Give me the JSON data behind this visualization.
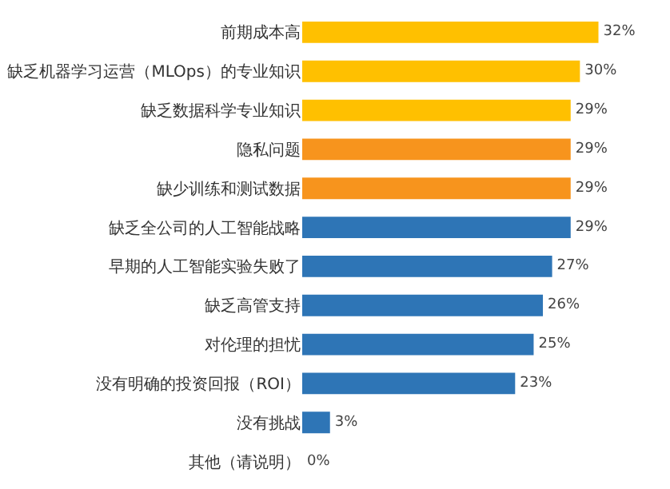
{
  "chart_data": {
    "type": "bar",
    "orientation": "horizontal",
    "tick_labels": "y",
    "legend": false,
    "categories": [
      "前期成本高",
      "缺乏机器学习运营（MLOps）的专业知识",
      "缺乏数据科学专业知识",
      "隐私问题",
      "缺少训练和测试数据",
      "缺乏全公司的人工智能战略",
      "早期的人工智能实验失败了",
      "缺乏高管支持",
      "对伦理的担忧",
      "没有明确的投资回报（ROI）",
      "没有挑战",
      "其他（请说明）"
    ],
    "values": [
      32,
      30,
      29,
      29,
      29,
      29,
      27,
      26,
      25,
      23,
      3,
      0
    ],
    "value_labels": [
      "32%",
      "30%",
      "29%",
      "29%",
      "29%",
      "29%",
      "27%",
      "26%",
      "25%",
      "23%",
      "3%",
      "0%"
    ],
    "colors": [
      "#ffc000",
      "#ffc000",
      "#ffc000",
      "#f7941d",
      "#f7941d",
      "#2e75b6",
      "#2e75b6",
      "#2e75b6",
      "#2e75b6",
      "#2e75b6",
      "#2e75b6",
      "#2e75b6"
    ]
  }
}
